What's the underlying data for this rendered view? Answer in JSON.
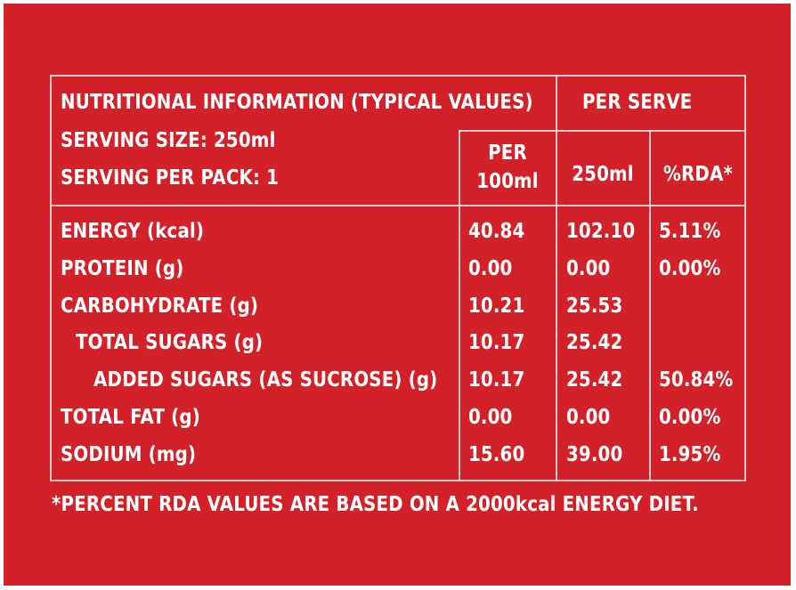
{
  "header": {
    "title": "NUTRITIONAL INFORMATION (TYPICAL VALUES)",
    "per_serve": "PER SERVE",
    "serving_size": "SERVING SIZE: 250ml",
    "serving_per_pack": "SERVING PER PACK: 1",
    "per_100_line1": "PER",
    "per_100_line2": "100ml",
    "col_250": "250ml",
    "col_rda": "%RDA*"
  },
  "rows": [
    {
      "label": "ENERGY (kcal)",
      "per100": "40.84",
      "serve": "102.10",
      "rda": "5.11%"
    },
    {
      "label": "PROTEIN (g)",
      "per100": "0.00",
      "serve": "0.00",
      "rda": "0.00%"
    },
    {
      "label": "CARBOHYDRATE (g)",
      "per100": "10.21",
      "serve": "25.53",
      "rda": ""
    },
    {
      "label": "TOTAL SUGARS (g)",
      "per100": "10.17",
      "serve": "25.42",
      "rda": ""
    },
    {
      "label": "ADDED SUGARS (AS SUCROSE) (g)",
      "per100": "10.17",
      "serve": "25.42",
      "rda": "50.84%"
    },
    {
      "label": "TOTAL FAT (g)",
      "per100": "0.00",
      "serve": "0.00",
      "rda": "0.00%"
    },
    {
      "label": "SODIUM (mg)",
      "per100": "15.60",
      "serve": "39.00",
      "rda": "1.95%"
    }
  ],
  "footnote": "*PERCENT RDA VALUES ARE BASED ON A 2000kcal ENERGY DIET.",
  "colors": {
    "background": "#d22129",
    "text": "#ffffff",
    "lines": "#f4c9c9"
  }
}
